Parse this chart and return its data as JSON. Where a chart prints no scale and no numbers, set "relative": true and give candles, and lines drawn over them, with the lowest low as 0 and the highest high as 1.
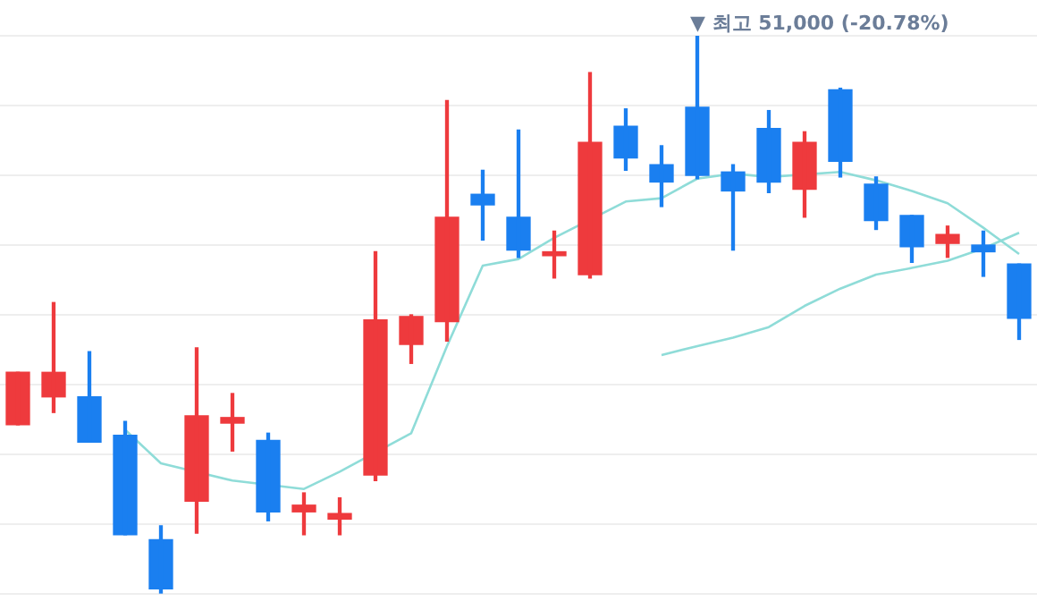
{
  "chart_data": {
    "type": "candlestick",
    "relative": true,
    "grid": "y",
    "categories": [
      null,
      null,
      null,
      null,
      null,
      null,
      null,
      null,
      null,
      null,
      null,
      null,
      null,
      null,
      null,
      null,
      null,
      null,
      null,
      null,
      null,
      null,
      null,
      null,
      null,
      null,
      null,
      null,
      null
    ],
    "ohlc": [
      [
        0.303,
        0.397,
        0.303,
        0.397
      ],
      [
        0.353,
        0.522,
        0.325,
        0.397
      ],
      [
        0.353,
        0.434,
        0.272,
        0.272
      ],
      [
        0.284,
        0.309,
        0.106,
        0.106
      ],
      [
        0.097,
        0.122,
        0,
        0.009
      ],
      [
        0.166,
        0.441,
        0.109,
        0.319
      ],
      [
        0.306,
        0.359,
        0.256,
        0.316
      ],
      [
        0.275,
        0.288,
        0.131,
        0.147
      ],
      [
        0.147,
        0.181,
        0.106,
        0.159
      ],
      [
        0.134,
        0.172,
        0.106,
        0.144
      ],
      [
        0.213,
        0.613,
        0.203,
        0.491
      ],
      [
        0.447,
        0.5,
        0.413,
        0.497
      ],
      [
        0.488,
        0.884,
        0.453,
        0.675
      ],
      [
        0.716,
        0.759,
        0.634,
        0.697
      ],
      [
        0.675,
        0.831,
        0.603,
        0.616
      ],
      [
        0.606,
        0.65,
        0.566,
        0.613
      ],
      [
        0.572,
        0.934,
        0.566,
        0.809
      ],
      [
        0.838,
        0.869,
        0.759,
        0.781
      ],
      [
        0.769,
        0.803,
        0.694,
        0.738
      ],
      [
        0.872,
        1,
        0.744,
        0.75
      ],
      [
        0.756,
        0.769,
        0.616,
        0.722
      ],
      [
        0.834,
        0.866,
        0.719,
        0.738
      ],
      [
        0.725,
        0.828,
        0.675,
        0.809
      ],
      [
        0.903,
        0.906,
        0.747,
        0.775
      ],
      [
        0.734,
        0.747,
        0.653,
        0.669
      ],
      [
        0.678,
        0.678,
        0.594,
        0.622
      ],
      [
        0.628,
        0.659,
        0.603,
        0.644
      ],
      [
        0.625,
        0.65,
        0.569,
        0.613
      ],
      [
        0.591,
        0.591,
        0.456,
        0.494
      ]
    ],
    "colors": [
      "#ee3a3d",
      "#ee3a3d",
      "#1a7ff0",
      "#1a7ff0",
      "#1a7ff0",
      "#ee3a3d",
      "#ee3a3d",
      "#1a7ff0",
      "#ee3a3d",
      "#ee3a3d",
      "#ee3a3d",
      "#ee3a3d",
      "#ee3a3d",
      "#1a7ff0",
      "#1a7ff0",
      "#ee3a3d",
      "#ee3a3d",
      "#1a7ff0",
      "#1a7ff0",
      "#1a7ff0",
      "#1a7ff0",
      "#1a7ff0",
      "#ee3a3d",
      "#1a7ff0",
      "#1a7ff0",
      "#1a7ff0",
      "#ee3a3d",
      "#1a7ff0",
      "#1a7ff0"
    ],
    "series": [
      {
        "type": "line",
        "color": "#8fdcd8",
        "values": [
          null,
          null,
          null,
          0.294,
          0.234,
          null,
          0.203,
          null,
          0.188,
          0.219,
          null,
          0.288,
          0.444,
          0.588,
          0.6,
          0.638,
          null,
          0.703,
          0.709,
          0.744,
          0.753,
          0.747,
          null,
          0.756,
          0.741,
          0.722,
          0.7,
          0.656,
          0.609
        ]
      },
      {
        "type": "line",
        "color": "#8fdcd8",
        "values": [
          null,
          null,
          null,
          null,
          null,
          null,
          null,
          null,
          null,
          null,
          null,
          null,
          null,
          null,
          null,
          null,
          null,
          null,
          0.428,
          0.444,
          0.459,
          0.478,
          0.516,
          0.547,
          0.572,
          0.584,
          0.597,
          0.619,
          0.647
        ]
      }
    ],
    "annotations": [
      "▼ 최고 51,000 (-20.78%)"
    ]
  }
}
